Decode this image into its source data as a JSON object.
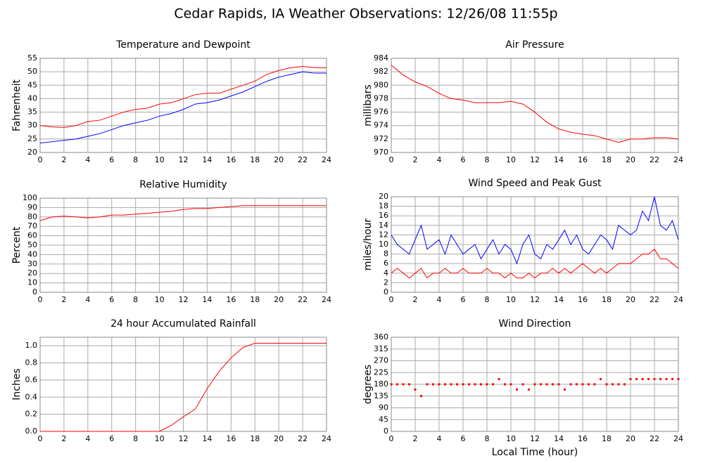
{
  "title": "Cedar Rapids, IA Weather Observations: 12/26/08 11:55p",
  "chart_data": [
    {
      "type": "line",
      "title": "Temperature and Dewpoint",
      "ylabel": "Fahrenheit",
      "x": [
        0,
        1,
        2,
        3,
        4,
        5,
        6,
        7,
        8,
        9,
        10,
        11,
        12,
        13,
        14,
        15,
        16,
        17,
        18,
        19,
        20,
        21,
        22,
        23,
        24
      ],
      "series": [
        {
          "color": "#ff0000",
          "values": [
            30,
            29.5,
            29.3,
            30,
            31.5,
            32,
            33.5,
            35,
            36,
            36.5,
            38,
            38.5,
            40,
            41.5,
            42,
            42,
            43.5,
            45,
            46.5,
            49,
            50.5,
            51.5,
            52,
            51.5,
            51.5
          ]
        },
        {
          "color": "#0000ff",
          "values": [
            23.5,
            24,
            24.5,
            25,
            26,
            27,
            28.5,
            30,
            31,
            32,
            33.5,
            34.5,
            36,
            38,
            38.5,
            39.5,
            41,
            42.5,
            44.5,
            46.5,
            48,
            49,
            50,
            49.5,
            49.5
          ]
        }
      ],
      "xlim": [
        0,
        24
      ],
      "xticks": [
        0,
        2,
        4,
        6,
        8,
        10,
        12,
        14,
        16,
        18,
        20,
        22,
        24
      ],
      "ylim": [
        20,
        55
      ],
      "yticks": [
        20,
        25,
        30,
        35,
        40,
        45,
        50,
        55
      ],
      "grid": true
    },
    {
      "type": "line",
      "title": "Air Pressure",
      "ylabel": "millibars",
      "x": [
        0,
        1,
        2,
        3,
        4,
        5,
        6,
        7,
        8,
        9,
        10,
        11,
        12,
        13,
        14,
        15,
        16,
        17,
        18,
        19,
        20,
        21,
        22,
        23,
        24
      ],
      "series": [
        {
          "color": "#ff0000",
          "values": [
            983,
            981.5,
            980.5,
            979.8,
            978.8,
            978,
            977.8,
            977.4,
            977.4,
            977.4,
            977.6,
            977.2,
            976,
            974.5,
            973.5,
            973,
            972.7,
            972.5,
            972,
            971.5,
            972,
            972,
            972.2,
            972.2,
            972
          ]
        }
      ],
      "xlim": [
        0,
        24
      ],
      "xticks": [
        0,
        2,
        4,
        6,
        8,
        10,
        12,
        14,
        16,
        18,
        20,
        22,
        24
      ],
      "ylim": [
        970,
        984
      ],
      "yticks": [
        970,
        972,
        974,
        976,
        978,
        980,
        982,
        984
      ],
      "grid": true
    },
    {
      "type": "line",
      "title": "Relative Humidity",
      "ylabel": "Percent",
      "x": [
        0,
        1,
        2,
        3,
        4,
        5,
        6,
        7,
        8,
        9,
        10,
        11,
        12,
        13,
        14,
        15,
        16,
        17,
        18,
        19,
        20,
        21,
        22,
        23,
        24
      ],
      "series": [
        {
          "color": "#ff0000",
          "values": [
            76,
            80,
            81,
            80,
            79,
            80,
            82,
            82,
            83,
            84,
            85,
            86,
            88,
            89,
            89,
            90,
            91,
            92,
            92,
            92,
            92,
            92,
            92,
            92,
            92
          ]
        }
      ],
      "xlim": [
        0,
        24
      ],
      "xticks": [
        0,
        2,
        4,
        6,
        8,
        10,
        12,
        14,
        16,
        18,
        20,
        22,
        24
      ],
      "ylim": [
        0,
        100
      ],
      "yticks": [
        0,
        10,
        20,
        30,
        40,
        50,
        60,
        70,
        80,
        90,
        100
      ],
      "grid": true
    },
    {
      "type": "line",
      "title": "Wind Speed and Peak Gust",
      "ylabel": "miles/hour",
      "x": [
        0,
        0.5,
        1,
        1.5,
        2,
        2.5,
        3,
        3.5,
        4,
        4.5,
        5,
        5.5,
        6,
        6.5,
        7,
        7.5,
        8,
        8.5,
        9,
        9.5,
        10,
        10.5,
        11,
        11.5,
        12,
        12.5,
        13,
        13.5,
        14,
        14.5,
        15,
        15.5,
        16,
        16.5,
        17,
        17.5,
        18,
        18.5,
        19,
        19.5,
        20,
        20.5,
        21,
        21.5,
        22,
        22.5,
        23,
        23.5,
        24
      ],
      "series": [
        {
          "color": "#0000ff",
          "values": [
            12,
            10,
            9,
            8,
            11,
            14,
            9,
            10,
            11,
            8,
            12,
            10,
            8,
            9,
            10,
            7,
            9,
            11,
            8,
            10,
            9,
            6,
            10,
            12,
            8,
            7,
            10,
            9,
            11,
            13,
            10,
            12,
            9,
            8,
            10,
            12,
            11,
            9,
            14,
            13,
            12,
            13,
            17,
            15,
            20,
            14,
            13,
            15,
            11
          ]
        },
        {
          "color": "#ff0000",
          "values": [
            4,
            5,
            4,
            3,
            4,
            5,
            3,
            4,
            4,
            5,
            4,
            4,
            5,
            4,
            4,
            4,
            5,
            4,
            4,
            3,
            4,
            3,
            3,
            4,
            3,
            4,
            4,
            5,
            4,
            5,
            4,
            5,
            6,
            5,
            4,
            5,
            4,
            5,
            6,
            6,
            6,
            7,
            8,
            8,
            9,
            7,
            7,
            6,
            5
          ]
        }
      ],
      "xlim": [
        0,
        24
      ],
      "xticks": [
        0,
        2,
        4,
        6,
        8,
        10,
        12,
        14,
        16,
        18,
        20,
        22,
        24
      ],
      "ylim": [
        0,
        20
      ],
      "yticks": [
        0,
        2,
        4,
        6,
        8,
        10,
        12,
        14,
        16,
        18,
        20
      ],
      "grid": true
    },
    {
      "type": "line",
      "title": "24 hour Accumulated Rainfall",
      "ylabel": "Inches",
      "x": [
        0,
        1,
        2,
        3,
        4,
        5,
        6,
        7,
        8,
        9,
        10,
        11,
        12,
        13,
        14,
        15,
        16,
        17,
        18,
        19,
        20,
        21,
        22,
        23,
        24
      ],
      "series": [
        {
          "color": "#ff0000",
          "values": [
            0,
            0,
            0,
            0,
            0,
            0,
            0,
            0,
            0,
            0,
            0,
            0.07,
            0.17,
            0.26,
            0.5,
            0.7,
            0.86,
            0.98,
            1.03,
            1.03,
            1.03,
            1.03,
            1.03,
            1.03,
            1.03
          ]
        }
      ],
      "xlim": [
        0,
        24
      ],
      "xticks": [
        0,
        2,
        4,
        6,
        8,
        10,
        12,
        14,
        16,
        18,
        20,
        22,
        24
      ],
      "ylim": [
        0,
        1.1
      ],
      "yticks": [
        {
          "value": 0,
          "label": "0.0"
        },
        0.2,
        0.4,
        0.6,
        0.8,
        {
          "value": 1,
          "label": "1.0"
        }
      ],
      "grid": true
    },
    {
      "type": "scatter",
      "title": "Wind Direction",
      "ylabel": "degrees",
      "xlabel": "Local Time (hour)",
      "x": [
        0,
        0.5,
        1,
        1.5,
        2,
        2.5,
        3,
        3.5,
        4,
        4.5,
        5,
        5.5,
        6,
        6.5,
        7,
        7.5,
        8,
        8.5,
        9,
        9.5,
        10,
        10.5,
        11,
        11.5,
        12,
        12.5,
        13,
        13.5,
        14,
        14.5,
        15,
        15.5,
        16,
        16.5,
        17,
        17.5,
        18,
        18.5,
        19,
        19.5,
        20,
        20.5,
        21,
        21.5,
        22,
        22.5,
        23,
        23.5,
        24
      ],
      "series": [
        {
          "color": "#ff0000",
          "values": [
            180,
            180,
            180,
            180,
            160,
            135,
            180,
            180,
            180,
            180,
            180,
            180,
            180,
            180,
            180,
            180,
            180,
            180,
            200,
            180,
            180,
            160,
            180,
            160,
            180,
            180,
            180,
            180,
            180,
            160,
            180,
            180,
            180,
            180,
            180,
            200,
            180,
            180,
            180,
            180,
            200,
            200,
            200,
            200,
            200,
            200,
            200,
            200,
            200
          ]
        }
      ],
      "xlim": [
        0,
        24
      ],
      "xticks": [
        0,
        2,
        4,
        6,
        8,
        10,
        12,
        14,
        16,
        18,
        20,
        22,
        24
      ],
      "ylim": [
        0,
        360
      ],
      "yticks": [
        0,
        45,
        90,
        135,
        180,
        225,
        270,
        315,
        360
      ],
      "grid": true
    }
  ]
}
